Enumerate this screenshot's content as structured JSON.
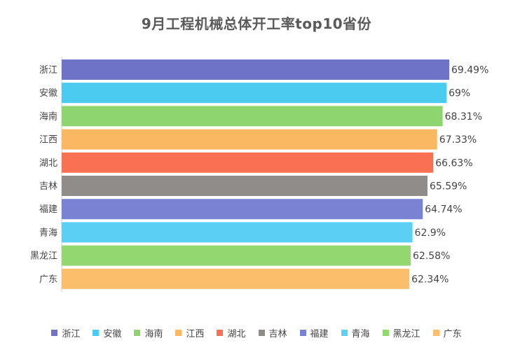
{
  "chart_data": {
    "type": "bar",
    "orientation": "horizontal",
    "title": "9月工程机械总体开工率top10省份",
    "xlabel": "",
    "ylabel": "",
    "xlim": [
      0,
      69.49
    ],
    "grid": false,
    "legend_position": "bottom",
    "categories": [
      "浙江",
      "安徽",
      "海南",
      "江西",
      "湖北",
      "吉林",
      "福建",
      "青海",
      "黑龙江",
      "广东"
    ],
    "values": [
      69.49,
      69,
      68.31,
      67.33,
      66.63,
      65.59,
      64.74,
      62.9,
      62.58,
      62.34
    ],
    "value_labels": [
      "69.49%",
      "69%",
      "68.31%",
      "67.33%",
      "66.63%",
      "65.59%",
      "64.74%",
      "62.9%",
      "62.58%",
      "62.34%"
    ],
    "colors": [
      "#6f73c8",
      "#4bcbf0",
      "#8ed46f",
      "#fbb863",
      "#fa7053",
      "#8f8c89",
      "#7a82d4",
      "#5ccff5",
      "#93d770",
      "#fbbe6a"
    ]
  }
}
